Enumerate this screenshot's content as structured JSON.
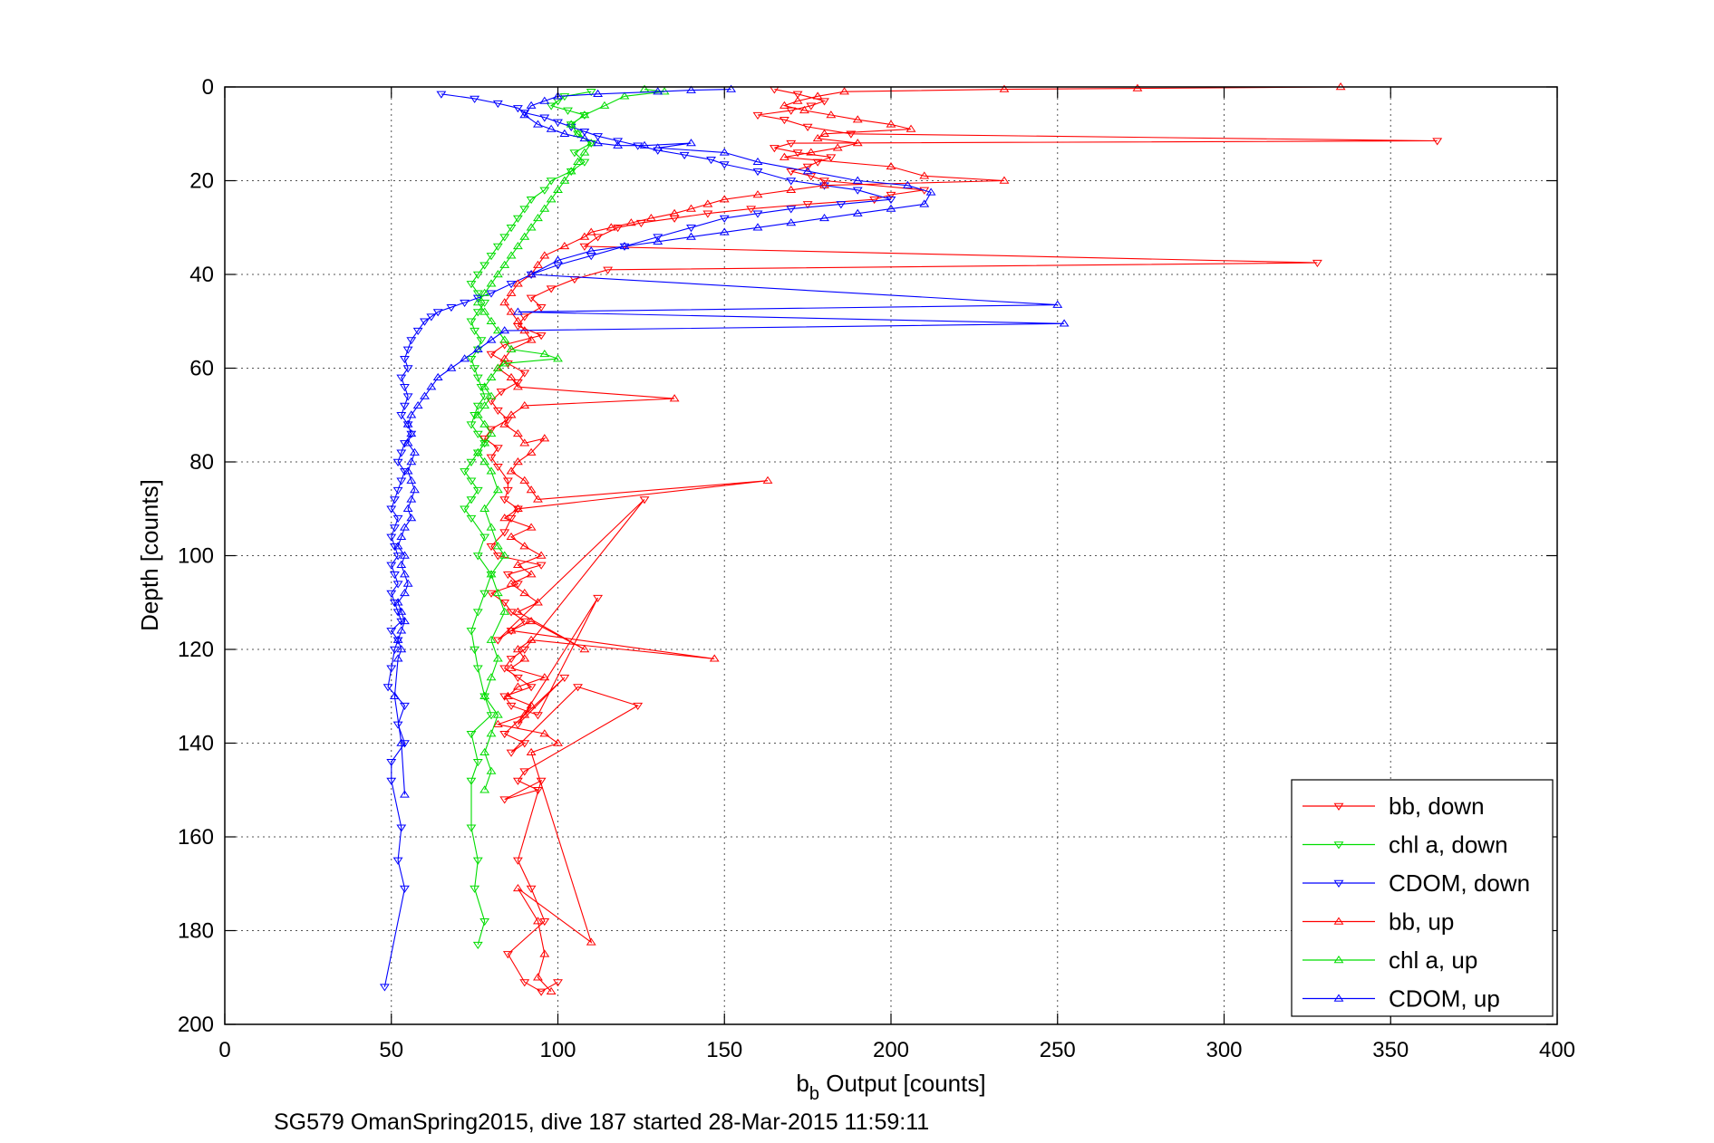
{
  "chart_data": {
    "type": "line",
    "xlabel_main": "b",
    "xlabel_sub": "b",
    "xlabel_rest": " Output [counts]",
    "ylabel": "Depth [counts]",
    "caption": "SG579 OmanSpring2015, dive 187 started 28-Mar-2015 11:59:11",
    "xlim": [
      0,
      400
    ],
    "ylim": [
      0,
      200
    ],
    "y_reversed": true,
    "grid": true,
    "legend_position": "bottom-right",
    "x_ticks": [
      "0",
      "50",
      "100",
      "150",
      "200",
      "250",
      "300",
      "350",
      "400"
    ],
    "y_ticks": [
      "0",
      "20",
      "40",
      "60",
      "80",
      "100",
      "120",
      "140",
      "160",
      "180",
      "200"
    ],
    "series": [
      {
        "name": "bb, down",
        "color": "#ff0000",
        "marker": "triangle-down",
        "lines": true,
        "x": [
          165,
          172,
          180,
          176,
          170,
          160,
          168,
          175,
          188,
          364,
          170,
          165,
          172,
          182,
          178,
          175,
          170,
          176,
          180,
          210,
          200,
          195,
          175,
          158,
          145,
          135,
          125,
          118,
          112,
          108,
          328,
          115,
          105,
          98,
          92,
          95,
          90,
          88,
          95,
          84,
          80,
          85,
          90,
          88,
          83,
          80,
          82,
          85,
          80,
          78,
          82,
          80,
          82,
          85,
          85,
          84,
          88,
          86,
          84,
          80,
          82,
          95,
          85,
          88,
          80,
          84,
          86,
          90,
          86,
          82,
          126,
          90,
          86,
          84,
          88,
          92,
          84,
          86,
          94,
          112,
          88,
          102,
          84,
          90,
          86,
          106,
          124,
          90,
          88,
          94,
          84,
          95,
          88,
          92,
          96,
          85,
          90,
          95,
          100
        ],
        "y": [
          0.5,
          1.5,
          3,
          4,
          5,
          6,
          7,
          8.5,
          10,
          11.5,
          12,
          13,
          14,
          15,
          16,
          17,
          18,
          19,
          20,
          22,
          23,
          24,
          25,
          26,
          27,
          28,
          29,
          30,
          32,
          34,
          37.5,
          39,
          41,
          43,
          45,
          47,
          49,
          51,
          53,
          55,
          57,
          59,
          61,
          63,
          65,
          67,
          69,
          71,
          73,
          75,
          77,
          79,
          81,
          84,
          86,
          88,
          90,
          92,
          95,
          98,
          100,
          102,
          104,
          106,
          108,
          110,
          112,
          114,
          116,
          118,
          88,
          120,
          122,
          124,
          126,
          128,
          130,
          132,
          134,
          109,
          136,
          126,
          138,
          140,
          142,
          128,
          132,
          146,
          148,
          150,
          152,
          148,
          165,
          171,
          178,
          185,
          191,
          193,
          191
        ]
      },
      {
        "name": "chl a, down",
        "color": "#00dd00",
        "marker": "triangle-down",
        "lines": true,
        "x": [
          110,
          102,
          100,
          98,
          103,
          108,
          104,
          106,
          110,
          105,
          108,
          104,
          98,
          96,
          92,
          90,
          88,
          86,
          84,
          82,
          80,
          78,
          76,
          74,
          76,
          78,
          76,
          74,
          75,
          77,
          76,
          74,
          75,
          76,
          77,
          78,
          76,
          75,
          74,
          76,
          78,
          76,
          74,
          72,
          74,
          76,
          74,
          72,
          74,
          78,
          76,
          80,
          78,
          76,
          74,
          75,
          76,
          78,
          80,
          74,
          76,
          74,
          74,
          76,
          75,
          78,
          76
        ],
        "y": [
          1,
          2,
          3,
          4,
          5,
          6,
          8,
          10,
          12,
          14,
          16,
          18,
          20,
          22,
          24,
          26,
          28,
          30,
          32,
          34,
          36,
          38,
          40,
          42,
          44,
          46,
          48,
          50,
          52,
          54,
          56,
          58,
          60,
          62,
          64,
          66,
          68,
          70,
          72,
          74,
          76,
          78,
          80,
          82,
          84,
          86,
          88,
          90,
          92,
          96,
          100,
          104,
          108,
          112,
          116,
          120,
          124,
          130,
          134,
          138,
          144,
          148,
          158,
          165,
          171,
          178,
          183
        ]
      },
      {
        "name": "CDOM, down",
        "color": "#0000ff",
        "marker": "triangle-down",
        "lines": true,
        "x": [
          65,
          75,
          82,
          88,
          90,
          96,
          100,
          104,
          108,
          112,
          118,
          124,
          130,
          138,
          146,
          150,
          160,
          170,
          180,
          190,
          200,
          185,
          170,
          160,
          150,
          140,
          130,
          120,
          110,
          100,
          92,
          86,
          80,
          76,
          72,
          68,
          64,
          62,
          60,
          58,
          56,
          55,
          54,
          55,
          53,
          54,
          55,
          54,
          53,
          55,
          56,
          54,
          53,
          52,
          54,
          53,
          52,
          51,
          50,
          52,
          51,
          50,
          51,
          52,
          50,
          51,
          52,
          50,
          51,
          52,
          53,
          50,
          52,
          51,
          50,
          49,
          54,
          52,
          54,
          50,
          50,
          53,
          52,
          54,
          48
        ],
        "y": [
          1.5,
          2.5,
          3.5,
          4.5,
          5.5,
          6.5,
          7.5,
          8.5,
          9.5,
          10.5,
          11.5,
          12.5,
          13.5,
          14.5,
          15.5,
          16.5,
          18,
          20,
          21,
          22,
          24,
          25,
          26,
          27,
          28,
          30,
          32,
          34,
          36,
          38,
          40,
          42,
          44,
          45,
          46,
          47,
          48,
          49,
          50,
          52,
          54,
          56,
          58,
          60,
          62,
          64,
          66,
          68,
          70,
          72,
          74,
          76,
          78,
          80,
          82,
          84,
          86,
          88,
          90,
          92,
          94,
          96,
          98,
          100,
          102,
          104,
          106,
          108,
          110,
          112,
          114,
          116,
          118,
          120,
          124,
          128,
          132,
          136,
          140,
          144,
          148,
          158,
          165,
          171,
          192
        ]
      },
      {
        "name": "bb, up",
        "color": "#ff0000",
        "marker": "triangle-up",
        "lines": true,
        "x": [
          335,
          274,
          234,
          186,
          178,
          172,
          168,
          174,
          182,
          190,
          200,
          206,
          180,
          178,
          190,
          184,
          176,
          168,
          200,
          210,
          234,
          180,
          170,
          160,
          150,
          145,
          140,
          135,
          128,
          122,
          116,
          110,
          108,
          102,
          96,
          94,
          92,
          88,
          86,
          84,
          86,
          88,
          90,
          92,
          86,
          84,
          82,
          86,
          88,
          135,
          90,
          86,
          84,
          88,
          90,
          96,
          92,
          88,
          86,
          90,
          92,
          94,
          163,
          88,
          84,
          92,
          86,
          90,
          95,
          88,
          92,
          86,
          90,
          94,
          88,
          108,
          92,
          86,
          147,
          92,
          88,
          90,
          86,
          96,
          88,
          85,
          92,
          90,
          82,
          96,
          100,
          92,
          110,
          88,
          94,
          96,
          94,
          98
        ],
        "y": [
          0,
          0.3,
          0.5,
          1,
          2,
          3,
          4,
          5,
          6,
          7,
          8,
          9,
          10,
          11,
          12,
          13,
          14,
          15,
          17,
          19,
          20,
          21,
          22,
          23,
          24,
          25,
          26,
          27,
          28,
          29,
          30,
          31,
          32,
          34,
          36,
          38,
          40,
          42,
          44,
          46,
          48,
          50,
          52,
          54,
          56,
          58,
          60,
          62,
          64,
          66.5,
          68,
          70,
          72,
          74,
          76,
          75,
          78,
          80,
          82,
          84,
          86,
          88,
          84,
          90,
          92,
          94,
          96,
          98,
          100,
          102,
          104,
          106,
          108,
          110,
          112,
          120,
          114,
          116,
          122,
          118,
          120,
          122,
          124,
          126,
          128,
          130,
          132,
          134,
          136,
          138,
          140,
          142,
          182.5,
          171,
          178,
          185,
          190,
          193
        ]
      },
      {
        "name": "chl a, up",
        "color": "#00dd00",
        "marker": "triangle-up",
        "lines": true,
        "x": [
          126,
          132,
          120,
          114,
          108,
          104,
          106,
          110,
          108,
          106,
          104,
          102,
          100,
          98,
          96,
          94,
          92,
          90,
          88,
          86,
          84,
          82,
          80,
          78,
          76,
          78,
          80,
          82,
          84,
          86,
          96,
          100,
          84,
          82,
          80,
          78,
          80,
          78,
          76,
          78,
          80,
          78,
          76,
          78,
          80,
          82,
          78,
          80,
          82,
          84,
          80,
          82,
          84,
          80,
          82,
          80,
          78,
          82,
          80,
          78,
          80,
          78
        ],
        "y": [
          0.5,
          1,
          2,
          4,
          6,
          8,
          10,
          12,
          14,
          16,
          18,
          20,
          22,
          24,
          26,
          28,
          30,
          32,
          34,
          36,
          38,
          40,
          42,
          44,
          46,
          48,
          50,
          52,
          54,
          56,
          57,
          58,
          59,
          60,
          62,
          64,
          66,
          68,
          70,
          72,
          74,
          76,
          78,
          80,
          82,
          86,
          90,
          94,
          98,
          100,
          104,
          108,
          112,
          118,
          122,
          126,
          130,
          134,
          138,
          142,
          146,
          150
        ]
      },
      {
        "name": "CDOM, up",
        "color": "#0000ff",
        "marker": "triangle-up",
        "lines": true,
        "x": [
          152,
          140,
          130,
          112,
          100,
          96,
          92,
          90,
          94,
          98,
          102,
          108,
          112,
          118,
          126,
          140,
          130,
          150,
          160,
          175,
          190,
          205,
          212,
          210,
          200,
          190,
          180,
          170,
          160,
          150,
          140,
          130,
          120,
          110,
          100,
          92,
          250,
          88,
          252,
          84,
          80,
          76,
          72,
          68,
          64,
          62,
          60,
          58,
          56,
          55,
          56,
          55,
          57,
          56,
          55,
          56,
          57,
          56,
          55,
          56,
          54,
          53,
          52,
          54,
          53,
          54,
          55,
          54,
          52,
          53,
          54,
          53,
          52,
          53,
          52,
          51,
          53,
          54
        ],
        "y": [
          0.5,
          0.7,
          1,
          1.5,
          2,
          3,
          4,
          6,
          8,
          9,
          10,
          11,
          12,
          12.5,
          12.5,
          12,
          13,
          14,
          16,
          18,
          20,
          21,
          22.5,
          25,
          26,
          27,
          28,
          29,
          30,
          31,
          32,
          33,
          34,
          35,
          37,
          40,
          46.5,
          48,
          50.5,
          52,
          54,
          56,
          58,
          60,
          62,
          64,
          66,
          68,
          70,
          72,
          74,
          76,
          78,
          80,
          82,
          84,
          86,
          88,
          90,
          92,
          94,
          96,
          98,
          100,
          102,
          104,
          106,
          108,
          110,
          112,
          114,
          116,
          118,
          120,
          122,
          130,
          140,
          151
        ]
      }
    ]
  }
}
